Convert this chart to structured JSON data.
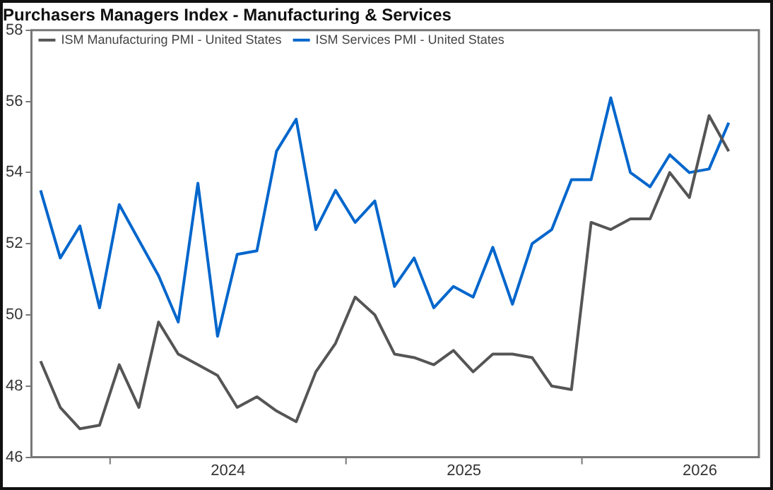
{
  "chart_data": {
    "type": "line",
    "title": "Purchasers Managers Index - Manufacturing & Services",
    "x": [
      "2023-09-15",
      "2023-10-15",
      "2023-11-15",
      "2023-12-15",
      "2024-01-15",
      "2024-02-15",
      "2024-03-15",
      "2024-04-15",
      "2024-05-15",
      "2024-06-15",
      "2024-07-15",
      "2024-08-15",
      "2024-09-15",
      "2024-10-15",
      "2024-11-15",
      "2024-12-15",
      "2025-01-15",
      "2025-02-15",
      "2025-03-15",
      "2025-04-15",
      "2025-05-15",
      "2025-06-15",
      "2025-07-15",
      "2025-08-15",
      "2025-09-15",
      "2025-10-15",
      "2025-11-15",
      "2025-12-15",
      "2026-01-15",
      "2026-02-15",
      "2026-03-15",
      "2026-04-15",
      "2026-05-15",
      "2026-06-15",
      "2026-07-15",
      "2026-08-15"
    ],
    "series": [
      {
        "name": "ISM Manufacturing PMI - United States",
        "color": "#555555",
        "values": [
          48.7,
          47.4,
          46.8,
          46.9,
          48.6,
          47.4,
          49.8,
          48.9,
          48.6,
          48.3,
          47.4,
          47.7,
          47.3,
          47.0,
          48.4,
          49.2,
          50.5,
          50.0,
          48.9,
          48.8,
          48.6,
          49.0,
          48.4,
          48.9,
          48.9,
          48.8,
          48.0,
          47.9,
          52.6,
          52.4,
          52.7,
          52.7,
          54.0,
          53.3,
          55.6,
          54.6
        ]
      },
      {
        "name": "ISM Services PMI - United States",
        "color": "#0066cc",
        "values": [
          53.5,
          51.6,
          52.5,
          50.2,
          53.1,
          52.1,
          51.1,
          49.8,
          53.7,
          49.4,
          51.7,
          51.8,
          54.6,
          55.5,
          52.4,
          53.5,
          52.6,
          53.2,
          50.8,
          51.6,
          50.2,
          50.8,
          50.5,
          51.9,
          50.3,
          52.0,
          52.4,
          53.8,
          53.8,
          56.1,
          54.0,
          53.6,
          54.5,
          54.0,
          54.1,
          55.4
        ]
      }
    ],
    "xlim": [
      "2023-09-01",
      "2026-10-01"
    ],
    "xticks": [
      {
        "value": "2024-01-01",
        "label": null
      },
      {
        "value": "2024-07-01",
        "label": "2024"
      },
      {
        "value": "2025-01-01",
        "label": null
      },
      {
        "value": "2025-07-01",
        "label": "2025"
      },
      {
        "value": "2026-01-01",
        "label": null
      },
      {
        "value": "2026-07-01",
        "label": "2026"
      }
    ],
    "ylim": [
      46,
      58
    ],
    "yticks": [
      46,
      48,
      50,
      52,
      54,
      56,
      58
    ],
    "grid": false,
    "legend": "top left",
    "marker": "none",
    "line_style": "solid"
  }
}
